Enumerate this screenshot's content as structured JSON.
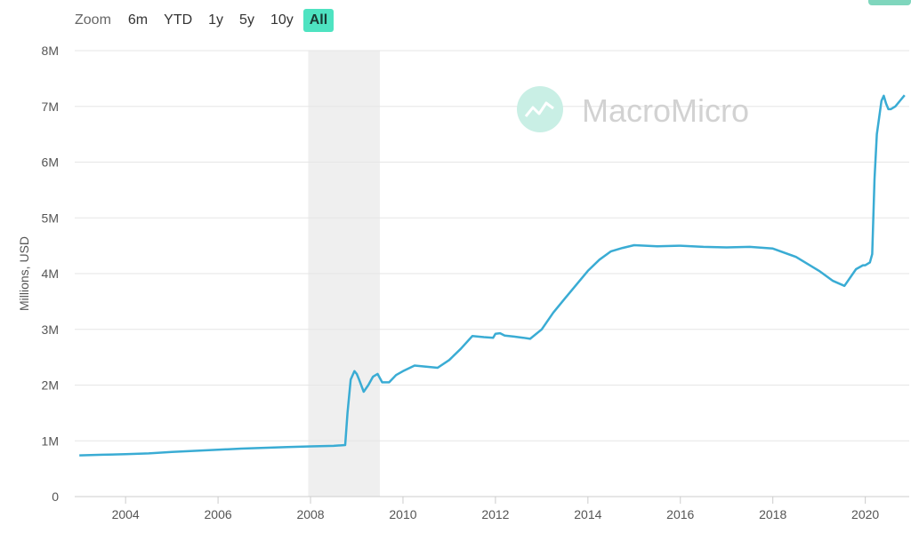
{
  "toolbar": {
    "zoom_label": "Zoom",
    "buttons": [
      "6m",
      "YTD",
      "1y",
      "5y",
      "10y",
      "All"
    ],
    "active": "All"
  },
  "watermark": {
    "text": "MacroMicro",
    "icon": "chart-trend-icon"
  },
  "colors": {
    "line": "#3aacd4",
    "recession": "#efefef",
    "grid": "#e6e6e6",
    "accent": "#4ee3c1"
  },
  "chart_data": {
    "type": "line",
    "title": "",
    "xlabel": "",
    "ylabel": "Millions, USD",
    "xlim": [
      2002.9,
      2020.95
    ],
    "ylim": [
      0,
      8000000
    ],
    "y_ticks": [
      {
        "value": 0,
        "label": "0"
      },
      {
        "value": 1000000,
        "label": "1M"
      },
      {
        "value": 2000000,
        "label": "2M"
      },
      {
        "value": 3000000,
        "label": "3M"
      },
      {
        "value": 4000000,
        "label": "4M"
      },
      {
        "value": 5000000,
        "label": "5M"
      },
      {
        "value": 6000000,
        "label": "6M"
      },
      {
        "value": 7000000,
        "label": "7M"
      },
      {
        "value": 8000000,
        "label": "8M"
      }
    ],
    "x_ticks": [
      {
        "value": 2004,
        "label": "2004"
      },
      {
        "value": 2006,
        "label": "2006"
      },
      {
        "value": 2008,
        "label": "2008"
      },
      {
        "value": 2010,
        "label": "2010"
      },
      {
        "value": 2012,
        "label": "2012"
      },
      {
        "value": 2014,
        "label": "2014"
      },
      {
        "value": 2016,
        "label": "2016"
      },
      {
        "value": 2018,
        "label": "2018"
      },
      {
        "value": 2020,
        "label": "2020"
      }
    ],
    "recession_band": [
      2007.95,
      2009.5
    ],
    "grid": true,
    "series": [
      {
        "x": [
          2003.0,
          2003.5,
          2004.0,
          2004.5,
          2005.0,
          2005.5,
          2006.0,
          2006.5,
          2007.0,
          2007.5,
          2008.0,
          2008.5,
          2008.75,
          2008.8,
          2008.87,
          2008.95,
          2009.0,
          2009.05,
          2009.15,
          2009.25,
          2009.35,
          2009.45,
          2009.55,
          2009.7,
          2009.85,
          2010.0,
          2010.25,
          2010.5,
          2010.75,
          2011.0,
          2011.25,
          2011.5,
          2011.75,
          2011.95,
          2012.0,
          2012.1,
          2012.2,
          2012.4,
          2012.6,
          2012.75,
          2013.0,
          2013.25,
          2013.5,
          2013.75,
          2014.0,
          2014.25,
          2014.5,
          2014.75,
          2015.0,
          2015.5,
          2016.0,
          2016.5,
          2017.0,
          2017.5,
          2018.0,
          2018.5,
          2019.0,
          2019.3,
          2019.55,
          2019.7,
          2019.8,
          2019.95,
          2020.0,
          2020.1,
          2020.15,
          2020.2,
          2020.25,
          2020.3,
          2020.35,
          2020.4,
          2020.45,
          2020.5,
          2020.55,
          2020.65,
          2020.75,
          2020.85
        ],
        "values": [
          740000,
          750000,
          760000,
          775000,
          800000,
          820000,
          840000,
          860000,
          875000,
          890000,
          900000,
          910000,
          925000,
          1500000,
          2100000,
          2250000,
          2200000,
          2100000,
          1880000,
          2000000,
          2150000,
          2200000,
          2050000,
          2050000,
          2180000,
          2250000,
          2350000,
          2330000,
          2310000,
          2450000,
          2650000,
          2880000,
          2860000,
          2850000,
          2920000,
          2930000,
          2890000,
          2870000,
          2850000,
          2830000,
          3000000,
          3300000,
          3550000,
          3800000,
          4050000,
          4250000,
          4400000,
          4460000,
          4510000,
          4490000,
          4500000,
          4480000,
          4470000,
          4480000,
          4450000,
          4300000,
          4050000,
          3870000,
          3780000,
          3960000,
          4080000,
          4150000,
          4150000,
          4200000,
          4350000,
          5700000,
          6500000,
          6800000,
          7100000,
          7190000,
          7050000,
          6950000,
          6950000,
          7000000,
          7100000,
          7200000
        ]
      }
    ]
  }
}
